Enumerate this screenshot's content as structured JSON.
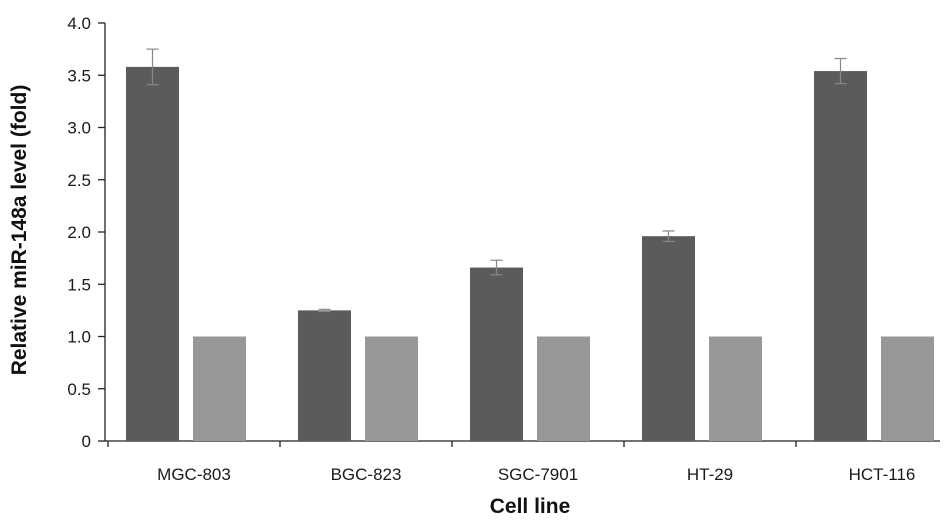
{
  "chart_data": {
    "type": "bar",
    "title": "",
    "xlabel": "Cell line",
    "ylabel": "Relative miR-148a level (fold)",
    "categories": [
      "MGC-803",
      "BGC-823",
      "SGC-7901",
      "HT-29",
      "HCT-116"
    ],
    "series": [
      {
        "color": "#5b5b5d",
        "values": [
          3.58,
          1.25,
          1.66,
          1.96,
          3.54
        ],
        "error": [
          0.17,
          0.01,
          0.07,
          0.05,
          0.12
        ]
      },
      {
        "color": "#98989b",
        "values": [
          1.0,
          1.0,
          1.0,
          1.0,
          1.0
        ]
      }
    ],
    "ylim": [
      0,
      4.0
    ],
    "yticks": [
      "0",
      "0.5",
      "1.0",
      "1.5",
      "2.0",
      "2.5",
      "3.0",
      "3.5",
      "4.0"
    ],
    "grid": false,
    "legend": "none"
  }
}
